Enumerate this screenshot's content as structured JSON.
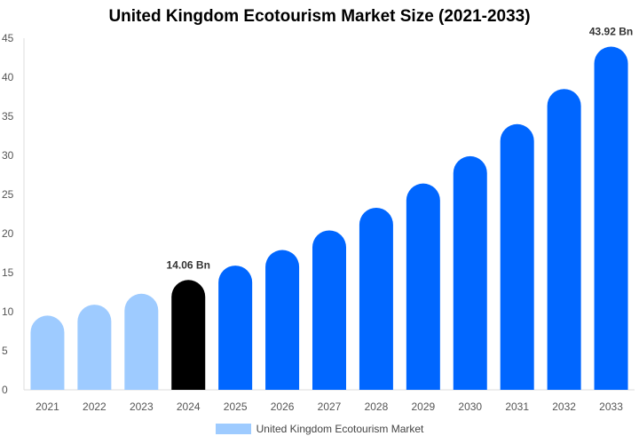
{
  "chart_data": {
    "type": "bar",
    "title": "United Kingdom Ecotourism Market Size (2021-2033)",
    "categories": [
      "2021",
      "2022",
      "2023",
      "2024",
      "2025",
      "2026",
      "2027",
      "2028",
      "2029",
      "2030",
      "2031",
      "2032",
      "2033"
    ],
    "series": [
      {
        "name": "United Kingdom Ecotourism Market",
        "values": [
          9.5,
          10.9,
          12.3,
          14.06,
          15.9,
          17.9,
          20.4,
          23.3,
          26.4,
          29.9,
          34.0,
          38.5,
          43.92
        ]
      }
    ],
    "data_labels": {
      "3": "14.06 Bn",
      "12": "43.92 Bn"
    },
    "ylim": [
      0,
      45
    ],
    "yticks": [
      0,
      5,
      10,
      15,
      20,
      25,
      30,
      35,
      40,
      45
    ],
    "xlabel": "",
    "ylabel": "",
    "grid": false,
    "legend": "bottom",
    "colors": {
      "historical": "#9ecbff",
      "current": "#000000",
      "forecast": "#0066ff",
      "legend": "#9ecbff"
    }
  }
}
